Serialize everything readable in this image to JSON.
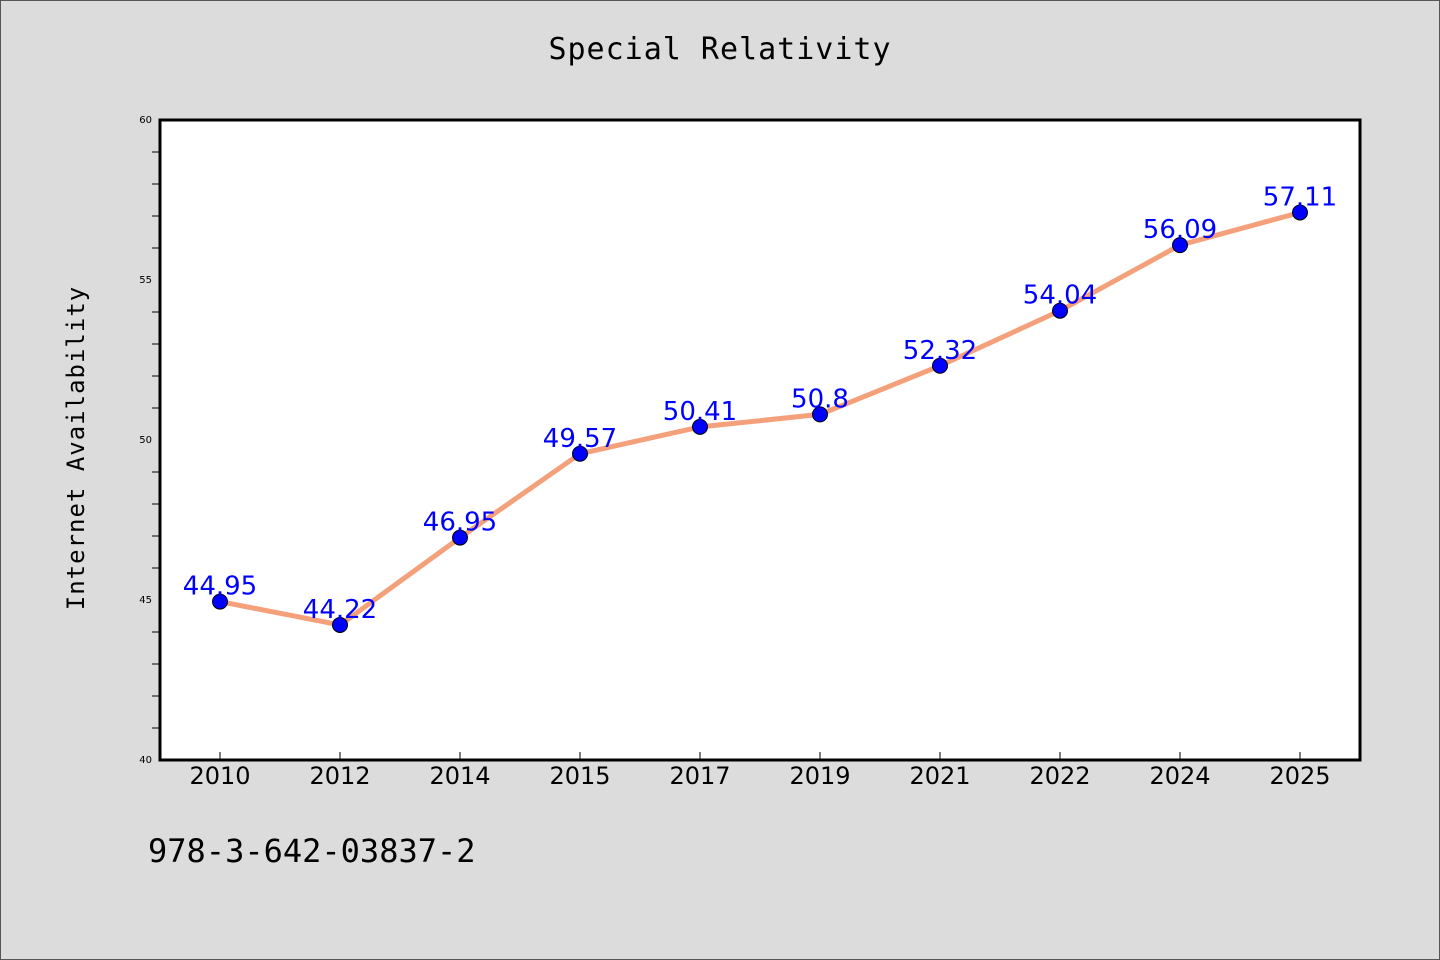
{
  "footer": {
    "code": "978-3-642-03837-2"
  },
  "chart_data": {
    "type": "line",
    "title": "Special Relativity",
    "xlabel": "",
    "ylabel": "Internet Availability",
    "categories": [
      "2010",
      "2012",
      "2014",
      "2015",
      "2017",
      "2019",
      "2021",
      "2022",
      "2024",
      "2025"
    ],
    "series": [
      {
        "values": [
          44.95,
          44.22,
          46.95,
          49.57,
          50.41,
          50.8,
          52.32,
          54.04,
          56.09,
          57.11
        ],
        "labels": [
          "44.95",
          "44.22",
          "46.95",
          "49.57",
          "50.41",
          "50.8",
          "52.32",
          "54.04",
          "56.09",
          "57.11"
        ],
        "line_color": "#f4a07a",
        "marker_color": "#0000ff",
        "label_color": "#0000ff"
      }
    ],
    "ylim": [
      40,
      60
    ],
    "y_ticks": [
      40,
      45,
      50,
      55,
      60
    ],
    "y_minor_step": 1,
    "grid": false,
    "legend": "none"
  }
}
